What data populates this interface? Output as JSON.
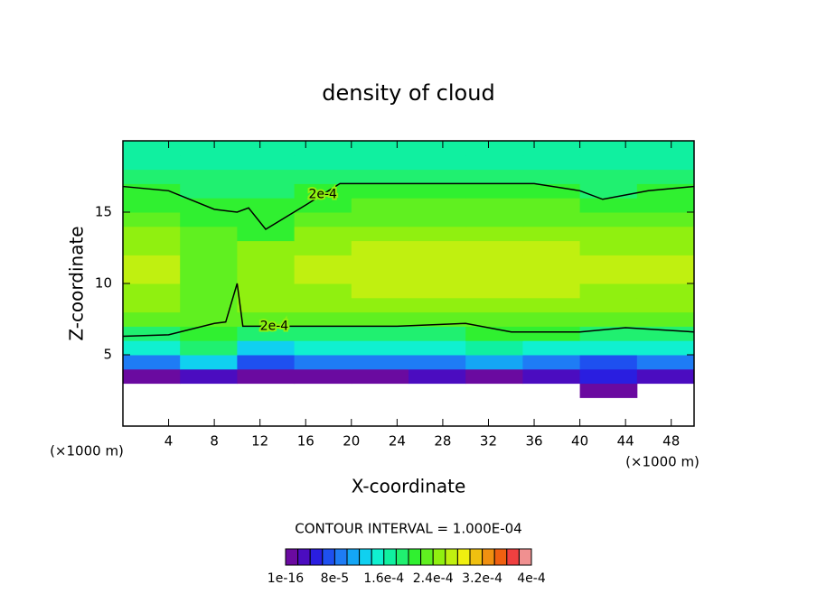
{
  "chart_data": {
    "type": "contour",
    "title": "density of cloud",
    "xlabel": "X-coordinate",
    "ylabel": "Z-coordinate",
    "x_unit": "(×1000 m)",
    "xlim": [
      0,
      50
    ],
    "ylim": [
      0,
      20
    ],
    "xticks": [
      4,
      8,
      12,
      16,
      20,
      24,
      28,
      32,
      36,
      40,
      44,
      48
    ],
    "yticks": [
      5,
      10,
      15
    ],
    "x": [
      2.5,
      7.5,
      12.5,
      17.5,
      22.5,
      27.5,
      32.5,
      37.5,
      42.5,
      47.5
    ],
    "y": [
      0.5,
      1.5,
      2.5,
      3.5,
      4.5,
      5.5,
      6.5,
      7.5,
      8.5,
      9.5,
      10.5,
      11.5,
      12.5,
      13.5,
      14.5,
      15.5,
      16.5,
      17.5,
      18.5,
      19.5
    ],
    "values": [
      [
        null,
        null,
        null,
        null,
        null,
        null,
        null,
        null,
        null,
        null
      ],
      [
        null,
        null,
        null,
        null,
        null,
        null,
        null,
        null,
        null,
        null
      ],
      [
        null,
        null,
        null,
        null,
        null,
        null,
        null,
        null,
        1e-05,
        null
      ],
      [
        1e-05,
        2e-05,
        1e-05,
        1e-05,
        1e-05,
        2e-05,
        1e-05,
        2e-05,
        4e-05,
        3e-05
      ],
      [
        8e-05,
        0.00012,
        7e-05,
        8e-05,
        8e-05,
        9e-05,
        0.0001,
        8e-05,
        7e-05,
        9e-05
      ],
      [
        0.00014,
        0.00018,
        0.00013,
        0.00014,
        0.00014,
        0.00015,
        0.00016,
        0.00015,
        0.00014,
        0.00015
      ],
      [
        0.00019,
        0.00021,
        0.00019,
        0.00019,
        0.00019,
        0.00019,
        0.0002,
        0.0002,
        0.00019,
        0.00019
      ],
      [
        0.00022,
        0.00023,
        0.00022,
        0.00022,
        0.00022,
        0.00022,
        0.00023,
        0.00023,
        0.00022,
        0.00022
      ],
      [
        0.00024,
        0.00023,
        0.00024,
        0.00024,
        0.00024,
        0.00025,
        0.00025,
        0.00025,
        0.00024,
        0.00024
      ],
      [
        0.00025,
        0.00023,
        0.00025,
        0.00025,
        0.00026,
        0.00026,
        0.00026,
        0.00026,
        0.00025,
        0.00025
      ],
      [
        0.00026,
        0.00023,
        0.00025,
        0.00026,
        0.00026,
        0.00026,
        0.00027,
        0.00027,
        0.00026,
        0.00026
      ],
      [
        0.00026,
        0.00022,
        0.00025,
        0.00026,
        0.00026,
        0.00026,
        0.00027,
        0.00027,
        0.00026,
        0.00026
      ],
      [
        0.00025,
        0.00022,
        0.00024,
        0.00025,
        0.00026,
        0.00026,
        0.00026,
        0.00026,
        0.00025,
        0.00025
      ],
      [
        0.00024,
        0.00022,
        0.00021,
        0.00024,
        0.00025,
        0.00025,
        0.00025,
        0.00025,
        0.00024,
        0.00024
      ],
      [
        0.00022,
        0.00021,
        0.00021,
        0.00022,
        0.00023,
        0.00023,
        0.00023,
        0.00023,
        0.00022,
        0.00022
      ],
      [
        0.00021,
        0.0002,
        0.0002,
        0.00021,
        0.00022,
        0.00022,
        0.00022,
        0.00022,
        0.0002,
        0.00021
      ],
      [
        0.0002,
        0.00019,
        0.00019,
        0.00021,
        0.00021,
        0.00021,
        0.00021,
        0.00021,
        0.00019,
        0.0002
      ],
      [
        0.00019,
        0.00018,
        0.00018,
        0.00019,
        0.00019,
        0.00019,
        0.00019,
        0.00019,
        0.00018,
        0.00019
      ],
      [
        0.00017,
        0.00017,
        0.00017,
        0.00017,
        0.00017,
        0.00017,
        0.00017,
        0.00017,
        0.00017,
        0.00017
      ],
      [
        0.00016,
        0.00016,
        0.00016,
        0.00016,
        0.00016,
        0.00016,
        0.00016,
        0.00016,
        0.00016,
        0.00016
      ]
    ],
    "levels": [
      1e-16,
      2e-05,
      4e-05,
      6e-05,
      8e-05,
      0.0001,
      0.00012,
      0.00014,
      0.00016,
      0.00018,
      0.0002,
      0.00022,
      0.00024,
      0.00026,
      0.00028,
      0.0003,
      0.00032,
      0.00034,
      0.00036,
      0.00038,
      0.0004
    ],
    "colors": [
      "#6a0aa0",
      "#4b0cc0",
      "#2a1ee0",
      "#1e50f0",
      "#1e7cf5",
      "#14a6f5",
      "#10d0f0",
      "#10f0d0",
      "#10f0a0",
      "#20f070",
      "#30f030",
      "#60f020",
      "#90f010",
      "#c0f010",
      "#f0f010",
      "#f0c010",
      "#f09010",
      "#f06010",
      "#f04040",
      "#f09090"
    ],
    "colorbar_ticks": [
      {
        "value": 1e-16,
        "label": "1e-16"
      },
      {
        "value": 8e-05,
        "label": "8e-5"
      },
      {
        "value": 0.00016,
        "label": "1.6e-4"
      },
      {
        "value": 0.00024,
        "label": "2.4e-4"
      },
      {
        "value": 0.00032,
        "label": "3.2e-4"
      },
      {
        "value": 0.0004,
        "label": "4e-4"
      }
    ],
    "contour_interval": "CONTOUR INTERVAL = 1.000E-04",
    "contours": [
      {
        "level": 0.0002,
        "label": "2e-4",
        "x": [
          0,
          4,
          8,
          9,
          10,
          10.5,
          16,
          24,
          30,
          34,
          40,
          44,
          50
        ],
        "y": [
          6.3,
          6.4,
          7.2,
          7.3,
          10,
          7,
          7,
          7,
          7.2,
          6.6,
          6.6,
          6.9,
          6.6
        ]
      },
      {
        "level": 0.0002,
        "label": "2e-4",
        "x": [
          0,
          4,
          8,
          10,
          11,
          12.5,
          16,
          19,
          24,
          36,
          40,
          42,
          46,
          50
        ],
        "y": [
          16.8,
          16.5,
          15.2,
          15,
          15.3,
          13.8,
          15.5,
          17,
          17,
          17,
          16.5,
          15.9,
          16.5,
          16.8
        ]
      }
    ]
  }
}
